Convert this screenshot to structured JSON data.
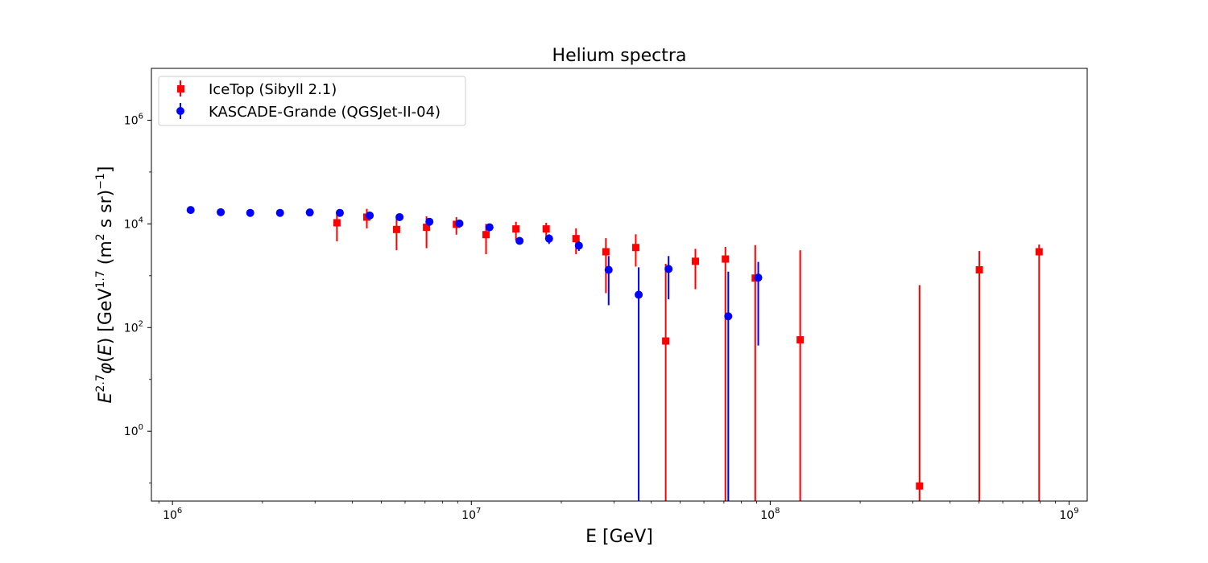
{
  "chart_data": {
    "type": "scatter",
    "title": "Helium spectra",
    "xlabel": "E [GeV]",
    "ylabel": "E^{2.7} φ(E) [GeV^{1.7} (m^2 s sr)^{-1}]",
    "x_scale": "log",
    "y_scale": "log",
    "xlim": [
      850000,
      1150000000
    ],
    "ylim": [
      0.045,
      10000000
    ],
    "legend_position": "upper-left",
    "grid": false,
    "x_ticks": [
      {
        "value": 1000000,
        "base": "10",
        "exp": "6"
      },
      {
        "value": 10000000,
        "base": "10",
        "exp": "7"
      },
      {
        "value": 100000000,
        "base": "10",
        "exp": "8"
      },
      {
        "value": 1000000000,
        "base": "10",
        "exp": "9"
      }
    ],
    "y_ticks": [
      {
        "value": 1,
        "base": "10",
        "exp": "0"
      },
      {
        "value": 100,
        "base": "10",
        "exp": "2"
      },
      {
        "value": 10000,
        "base": "10",
        "exp": "4"
      },
      {
        "value": 1000000,
        "base": "10",
        "exp": "6"
      }
    ],
    "series": [
      {
        "name": "IceTop (Sibyll 2.1)",
        "color": "#ff0000",
        "marker": "square",
        "points": [
          {
            "x": 3550000,
            "y": 10500,
            "ylo": 4600,
            "yhi": 17000
          },
          {
            "x": 4470000,
            "y": 13500,
            "ylo": 8200,
            "yhi": 19500
          },
          {
            "x": 5620000,
            "y": 7800,
            "ylo": 3100,
            "yhi": 12500
          },
          {
            "x": 7080000,
            "y": 8600,
            "ylo": 3400,
            "yhi": 14000
          },
          {
            "x": 8910000,
            "y": 9800,
            "ylo": 6200,
            "yhi": 13500
          },
          {
            "x": 11200000,
            "y": 6200,
            "ylo": 2600,
            "yhi": 10000
          },
          {
            "x": 14100000,
            "y": 8000,
            "ylo": 4800,
            "yhi": 11000
          },
          {
            "x": 17800000,
            "y": 8000,
            "ylo": 5300,
            "yhi": 10500
          },
          {
            "x": 22400000,
            "y": 5200,
            "ylo": 2600,
            "yhi": 8200
          },
          {
            "x": 28200000,
            "y": 2900,
            "ylo": 460,
            "yhi": 5300
          },
          {
            "x": 35500000,
            "y": 3500,
            "ylo": 1500,
            "yhi": 6300
          },
          {
            "x": 44700000,
            "y": 55,
            "ylo": 0.045,
            "yhi": 1700
          },
          {
            "x": 56200000,
            "y": 1900,
            "ylo": 550,
            "yhi": 3300
          },
          {
            "x": 70800000,
            "y": 2100,
            "ylo": 0.045,
            "yhi": 3600
          },
          {
            "x": 89100000,
            "y": 900,
            "ylo": 0.045,
            "yhi": 3900
          },
          {
            "x": 126000000,
            "y": 58,
            "ylo": 0.045,
            "yhi": 3100
          },
          {
            "x": 316000000,
            "y": 0.088,
            "ylo": 0.045,
            "yhi": 660
          },
          {
            "x": 501000000,
            "y": 1300,
            "ylo": 0.045,
            "yhi": 3000
          },
          {
            "x": 794000000,
            "y": 2900,
            "ylo": 0.045,
            "yhi": 4000
          }
        ]
      },
      {
        "name": "KASCADE-Grande (QGSJet-II-04)",
        "color": "#0000ff",
        "marker": "circle",
        "points": [
          {
            "x": 1150000,
            "y": 18500,
            "ylo": 18500,
            "yhi": 18500
          },
          {
            "x": 1450000,
            "y": 16800,
            "ylo": 16800,
            "yhi": 16800
          },
          {
            "x": 1820000,
            "y": 16300,
            "ylo": 16300,
            "yhi": 16300
          },
          {
            "x": 2290000,
            "y": 16300,
            "ylo": 16300,
            "yhi": 16300
          },
          {
            "x": 2880000,
            "y": 16600,
            "ylo": 16600,
            "yhi": 16600
          },
          {
            "x": 3630000,
            "y": 16300,
            "ylo": 15500,
            "yhi": 17000
          },
          {
            "x": 4570000,
            "y": 14500,
            "ylo": 13500,
            "yhi": 15500
          },
          {
            "x": 5750000,
            "y": 13500,
            "ylo": 12500,
            "yhi": 14500
          },
          {
            "x": 7240000,
            "y": 11000,
            "ylo": 10000,
            "yhi": 12000
          },
          {
            "x": 9120000,
            "y": 10200,
            "ylo": 9300,
            "yhi": 11000
          },
          {
            "x": 11500000,
            "y": 8600,
            "ylo": 7600,
            "yhi": 9600
          },
          {
            "x": 14500000,
            "y": 4700,
            "ylo": 4100,
            "yhi": 5300
          },
          {
            "x": 18200000,
            "y": 5200,
            "ylo": 4100,
            "yhi": 6300
          },
          {
            "x": 22900000,
            "y": 3800,
            "ylo": 3000,
            "yhi": 4600
          },
          {
            "x": 28800000,
            "y": 1300,
            "ylo": 270,
            "yhi": 2400
          },
          {
            "x": 36300000,
            "y": 430,
            "ylo": 0.045,
            "yhi": 1450
          },
          {
            "x": 45700000,
            "y": 1350,
            "ylo": 350,
            "yhi": 2400
          },
          {
            "x": 72400000,
            "y": 165,
            "ylo": 0.045,
            "yhi": 1200
          },
          {
            "x": 91200000,
            "y": 920,
            "ylo": 45,
            "yhi": 1850
          }
        ]
      }
    ]
  }
}
